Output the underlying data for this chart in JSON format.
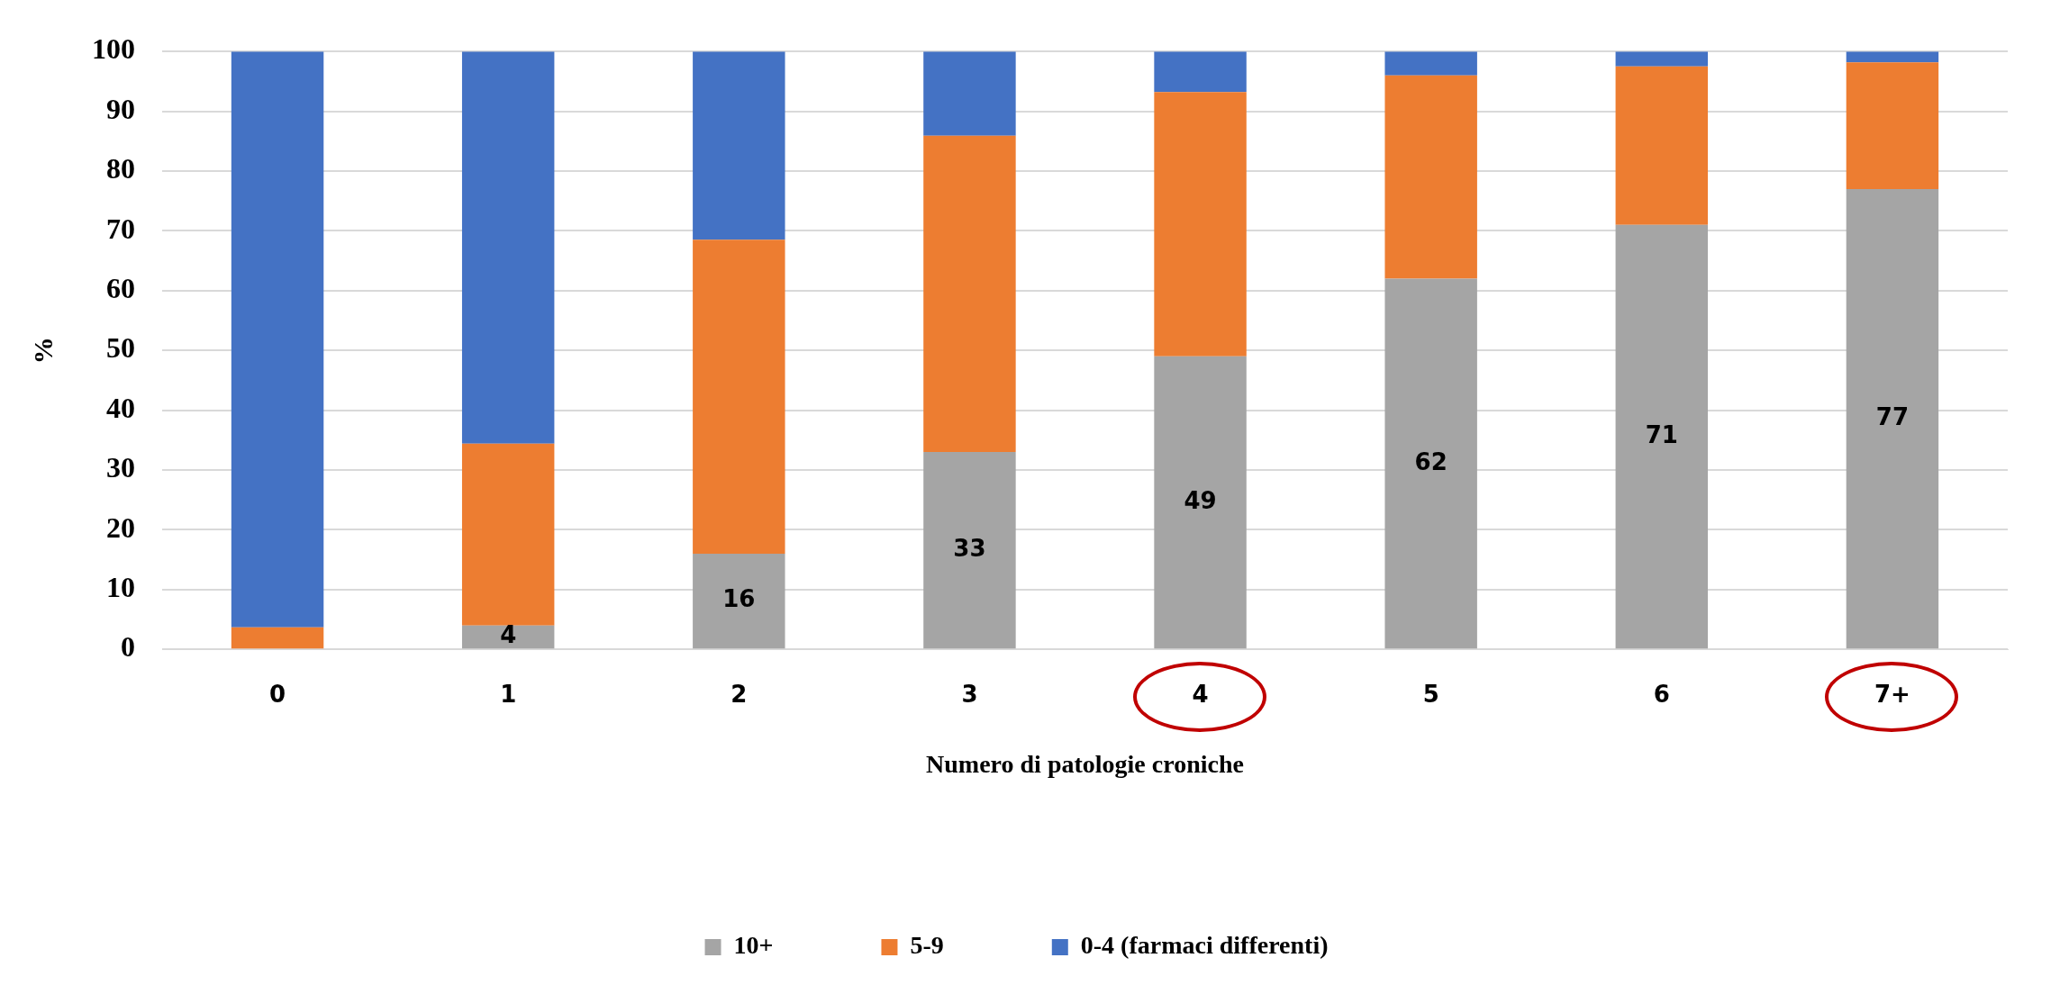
{
  "chart_data": {
    "type": "bar",
    "stacked": true,
    "xlabel": "Numero di patologie croniche",
    "ylabel": "%",
    "categories": [
      "0",
      "1",
      "2",
      "3",
      "4",
      "5",
      "6",
      "7+"
    ],
    "series": [
      {
        "name": "10+",
        "color": "#a5a5a5",
        "values": [
          0,
          4,
          16,
          33,
          49,
          62,
          71,
          77
        ],
        "value_labels": [
          null,
          "4",
          "16",
          "33",
          "49",
          "62",
          "71",
          "77"
        ]
      },
      {
        "name": "5-9",
        "color": "#ed7d31",
        "values": [
          3.7,
          30.4,
          52.5,
          52.9,
          44.2,
          34.0,
          26.5,
          21.2
        ]
      },
      {
        "name": "0-4 (farmaci differenti)",
        "color": "#4472c4",
        "values": [
          96.3,
          65.6,
          31.5,
          14.1,
          6.8,
          4.0,
          2.5,
          1.8
        ]
      }
    ],
    "ylim": [
      0,
      100
    ],
    "yticks": [
      0,
      10,
      20,
      30,
      40,
      50,
      60,
      70,
      80,
      90,
      100
    ],
    "grid": "y",
    "legend": "bottom"
  }
}
